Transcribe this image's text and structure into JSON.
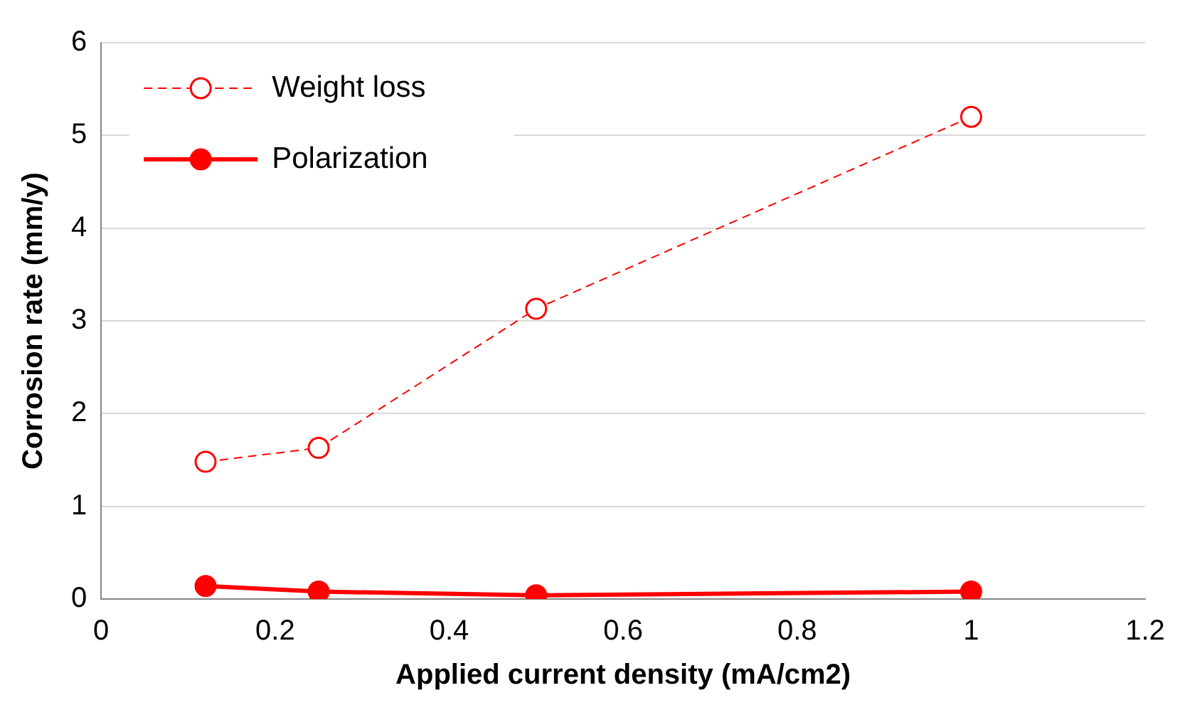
{
  "chart_data": {
    "type": "line",
    "xlabel": "Applied current density (mA/cm2)",
    "ylabel": "Corrosion rate (mm/y)",
    "xlim": [
      0,
      1.2
    ],
    "xticks": [
      0,
      0.2,
      0.4,
      0.6,
      0.8,
      1,
      1.2
    ],
    "ylim": [
      0,
      6
    ],
    "yticks": [
      0,
      1,
      2,
      3,
      4,
      5,
      6
    ],
    "grid": "y",
    "legend": "top left",
    "x": [
      0.12,
      0.25,
      0.5,
      1
    ],
    "series": [
      {
        "name": "Weight loss",
        "color": "#ff0000",
        "values": [
          1.48,
          1.63,
          3.13,
          5.2
        ],
        "marker": "circle",
        "line_style": "dashed"
      },
      {
        "name": "Polarization",
        "color": "#ff0000",
        "values": [
          0.14,
          0.08,
          0.04,
          0.08
        ],
        "marker": "circle",
        "line_style": "solid"
      }
    ]
  }
}
